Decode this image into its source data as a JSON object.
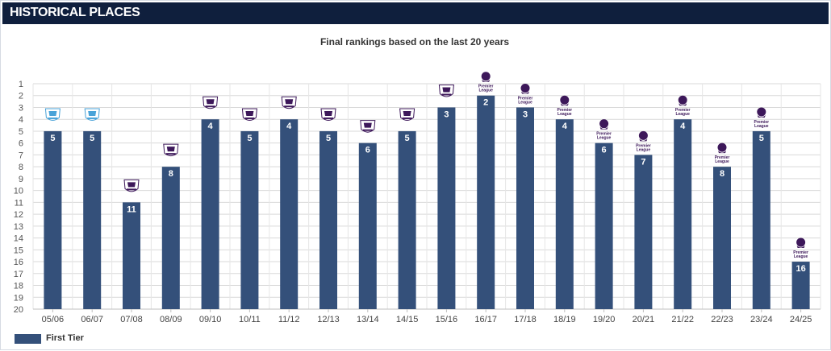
{
  "header": {
    "title": "HISTORICAL PLACES"
  },
  "chart_data": {
    "type": "bar",
    "title": "Final rankings based on the last 20 years",
    "categories": [
      "05/06",
      "06/07",
      "07/08",
      "08/09",
      "09/10",
      "10/11",
      "11/12",
      "12/13",
      "13/14",
      "14/15",
      "15/16",
      "16/17",
      "17/18",
      "18/19",
      "19/20",
      "20/21",
      "21/22",
      "22/23",
      "23/24",
      "24/25"
    ],
    "series": [
      {
        "name": "First Tier",
        "values": [
          5,
          5,
          11,
          8,
          4,
          5,
          4,
          5,
          6,
          5,
          3,
          2,
          3,
          4,
          6,
          7,
          4,
          8,
          5,
          16
        ]
      }
    ],
    "y_ticks": [
      1,
      2,
      3,
      4,
      5,
      6,
      7,
      8,
      9,
      10,
      11,
      12,
      13,
      14,
      15,
      16,
      17,
      18,
      19,
      20
    ],
    "ylim": [
      1,
      20
    ],
    "y_reversed": true,
    "grid": true,
    "legend_position": "bottom-left",
    "bar_color": "#34507a",
    "badge_color_light": "#4aa3d8",
    "badge_color_purple": "#3d185a",
    "badge_text": "Premier League",
    "badge_styles": [
      "old-blue",
      "old-blue",
      "old-purple",
      "old-purple",
      "old-purple",
      "old-purple",
      "old-purple",
      "old-purple",
      "old-purple",
      "old-purple",
      "old-purple",
      "new",
      "new",
      "new",
      "new",
      "new",
      "new",
      "new",
      "new",
      "new"
    ]
  },
  "legend": {
    "label": "First Tier",
    "color": "#34507a"
  }
}
